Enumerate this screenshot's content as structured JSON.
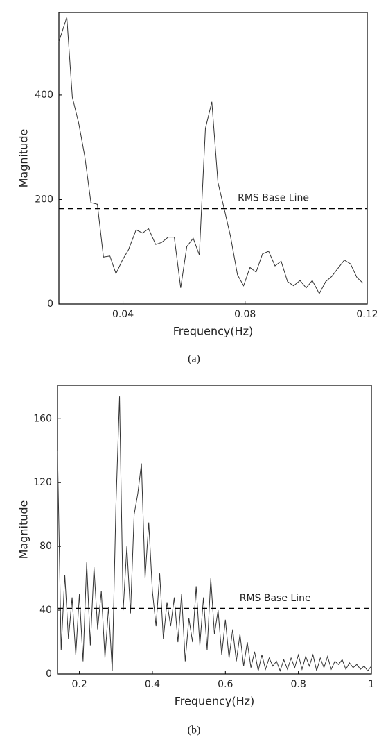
{
  "chart_data": [
    {
      "type": "line",
      "caption": "(a)",
      "x_label": "Frequency(Hz)",
      "y_label": "Magnitude",
      "xlim": [
        0.019,
        0.12
      ],
      "ylim": [
        0,
        558
      ],
      "xticks": [
        0.04,
        0.08,
        0.12
      ],
      "yticks": [
        0,
        200,
        400
      ],
      "color": "#333333",
      "reference_line": {
        "value": 183,
        "label": "RMS Base Line"
      },
      "x": [
        0.019,
        0.0216,
        0.0234,
        0.0255,
        0.0275,
        0.0295,
        0.0316,
        0.0336,
        0.0357,
        0.0377,
        0.0398,
        0.0418,
        0.0443,
        0.0464,
        0.0484,
        0.0507,
        0.0527,
        0.0548,
        0.0568,
        0.0589,
        0.0609,
        0.063,
        0.065,
        0.067,
        0.0691,
        0.0711,
        0.0732,
        0.0752,
        0.0775,
        0.0795,
        0.0816,
        0.0836,
        0.0857,
        0.0877,
        0.0898,
        0.0918,
        0.0939,
        0.0959,
        0.098,
        0.1,
        0.102,
        0.1043,
        0.1064,
        0.1084,
        0.1105,
        0.1125,
        0.1145,
        0.1166,
        0.1186
      ],
      "values": [
        502,
        549,
        396,
        346,
        282,
        194,
        191,
        90,
        92,
        58,
        84,
        104,
        142,
        136,
        144,
        114,
        118,
        128,
        128,
        31,
        110,
        126,
        94,
        336,
        387,
        233,
        181,
        130,
        56,
        35,
        70,
        61,
        96,
        101,
        73,
        82,
        43,
        35,
        45,
        31,
        45,
        20,
        43,
        53,
        69,
        84,
        77,
        51,
        40
      ]
    },
    {
      "type": "line",
      "caption": "(b)",
      "x_label": "Frequency(Hz)",
      "y_label": "Magnitude",
      "xlim": [
        0.14,
        1
      ],
      "ylim": [
        0,
        181
      ],
      "xticks": [
        0.2,
        0.4,
        0.6,
        0.8,
        1
      ],
      "yticks": [
        0,
        40,
        80,
        120,
        160
      ],
      "color": "#333333",
      "reference_line": {
        "value": 41,
        "label": "RMS Base Line"
      },
      "x": [
        0.14,
        0.15,
        0.16,
        0.17,
        0.18,
        0.19,
        0.2,
        0.21,
        0.22,
        0.23,
        0.24,
        0.25,
        0.26,
        0.27,
        0.28,
        0.29,
        0.3,
        0.31,
        0.32,
        0.33,
        0.34,
        0.35,
        0.36,
        0.37,
        0.38,
        0.39,
        0.4,
        0.41,
        0.42,
        0.43,
        0.44,
        0.45,
        0.46,
        0.47,
        0.48,
        0.49,
        0.5,
        0.51,
        0.52,
        0.53,
        0.54,
        0.55,
        0.56,
        0.57,
        0.58,
        0.59,
        0.6,
        0.61,
        0.62,
        0.63,
        0.64,
        0.65,
        0.66,
        0.67,
        0.68,
        0.69,
        0.7,
        0.71,
        0.72,
        0.73,
        0.74,
        0.75,
        0.76,
        0.77,
        0.78,
        0.79,
        0.8,
        0.81,
        0.82,
        0.83,
        0.84,
        0.85,
        0.86,
        0.87,
        0.88,
        0.89,
        0.9,
        0.91,
        0.92,
        0.93,
        0.94,
        0.95,
        0.96,
        0.97,
        0.98,
        0.99,
        1
      ],
      "values": [
        140,
        15,
        62,
        22,
        48,
        12,
        50,
        8,
        70,
        18,
        67,
        28,
        52,
        10,
        42,
        2,
        105,
        174,
        40,
        80,
        38,
        100,
        113,
        132,
        60,
        95,
        52,
        30,
        63,
        22,
        45,
        30,
        48,
        20,
        50,
        8,
        35,
        20,
        55,
        18,
        48,
        15,
        60,
        25,
        40,
        12,
        34,
        10,
        28,
        8,
        25,
        5,
        20,
        4,
        14,
        2,
        12,
        3,
        10,
        5,
        8,
        2,
        9,
        3,
        10,
        4,
        12,
        3,
        11,
        5,
        12,
        2,
        10,
        4,
        11,
        3,
        8,
        6,
        9,
        3,
        7,
        4,
        6,
        3,
        5,
        2,
        5
      ]
    }
  ]
}
